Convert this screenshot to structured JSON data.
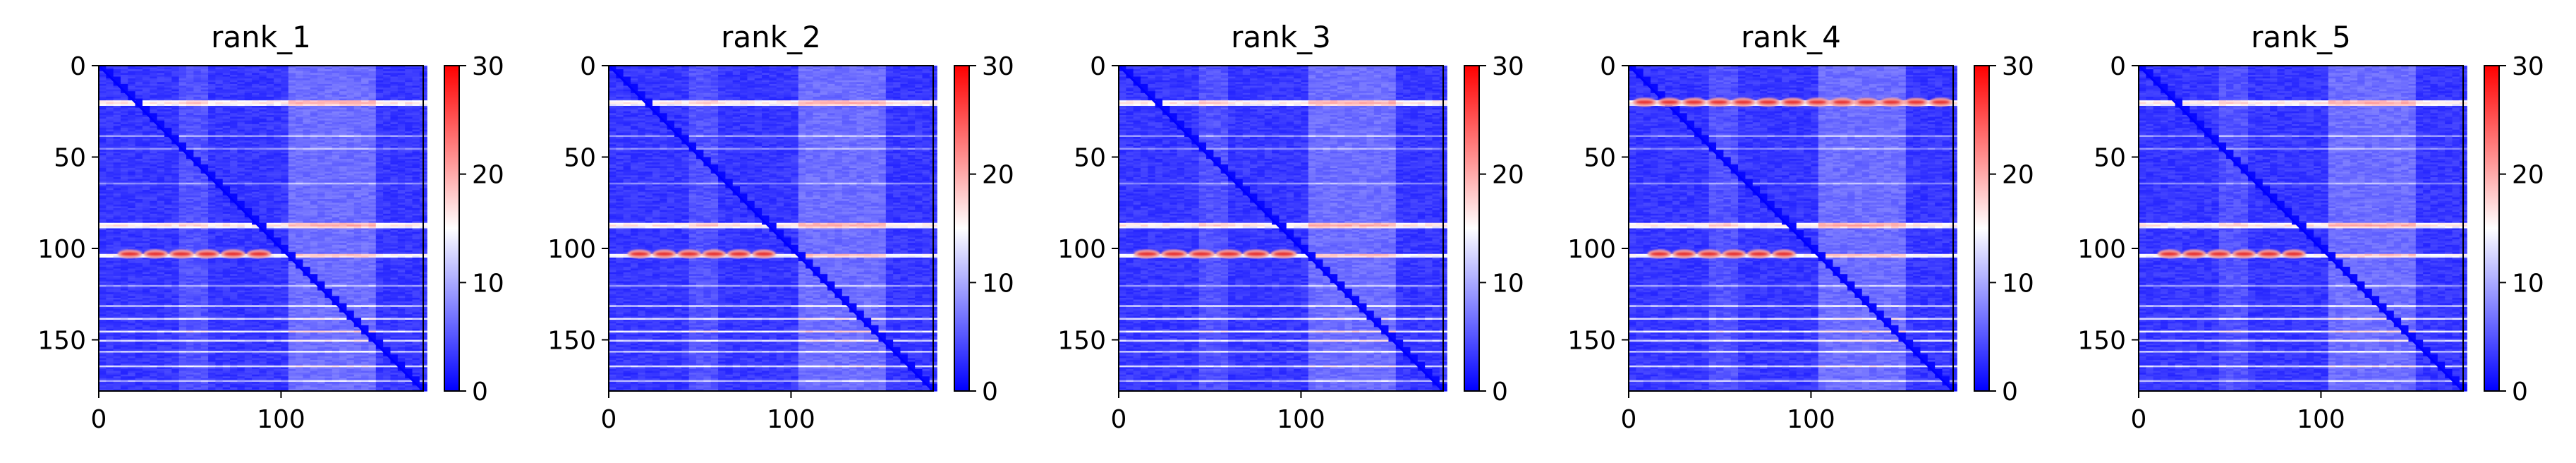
{
  "chart_data": [
    {
      "type": "heatmap",
      "title": "rank_1",
      "rows": 178,
      "cols": 178,
      "yticks": [
        0,
        50,
        100,
        150
      ],
      "xticks": [
        0,
        100
      ],
      "colorbar_ticks": [
        0,
        10,
        20,
        30
      ],
      "clim": [
        0,
        30
      ],
      "colormap": "bwr",
      "hot_bands": [
        {
          "row": 103,
          "from_col": 10,
          "to_col": 95
        }
      ]
    },
    {
      "type": "heatmap",
      "title": "rank_2",
      "rows": 178,
      "cols": 178,
      "yticks": [
        0,
        50,
        100,
        150
      ],
      "xticks": [
        0,
        100
      ],
      "colorbar_ticks": [
        0,
        10,
        20,
        30
      ],
      "clim": [
        0,
        30
      ],
      "colormap": "bwr",
      "hot_bands": [
        {
          "row": 103,
          "from_col": 10,
          "to_col": 92
        }
      ]
    },
    {
      "type": "heatmap",
      "title": "rank_3",
      "rows": 178,
      "cols": 178,
      "yticks": [
        0,
        50,
        100,
        150
      ],
      "xticks": [
        0,
        100
      ],
      "colorbar_ticks": [
        0,
        10,
        20,
        30
      ],
      "clim": [
        0,
        30
      ],
      "colormap": "bwr",
      "hot_bands": [
        {
          "row": 103,
          "from_col": 8,
          "to_col": 98
        }
      ]
    },
    {
      "type": "heatmap",
      "title": "rank_4",
      "rows": 178,
      "cols": 178,
      "yticks": [
        0,
        50,
        100,
        150
      ],
      "xticks": [
        0,
        100
      ],
      "colorbar_ticks": [
        0,
        10,
        20,
        30
      ],
      "clim": [
        0,
        30
      ],
      "colormap": "bwr",
      "hot_bands": [
        {
          "row": 20,
          "from_col": 2,
          "to_col": 178
        },
        {
          "row": 103,
          "from_col": 10,
          "to_col": 92
        }
      ]
    },
    {
      "type": "heatmap",
      "title": "rank_5",
      "rows": 178,
      "cols": 178,
      "yticks": [
        0,
        50,
        100,
        150
      ],
      "xticks": [
        0,
        100
      ],
      "colorbar_ticks": [
        0,
        10,
        20,
        30
      ],
      "clim": [
        0,
        30
      ],
      "colormap": "bwr",
      "hot_bands": [
        {
          "row": 103,
          "from_col": 10,
          "to_col": 92
        }
      ]
    }
  ]
}
